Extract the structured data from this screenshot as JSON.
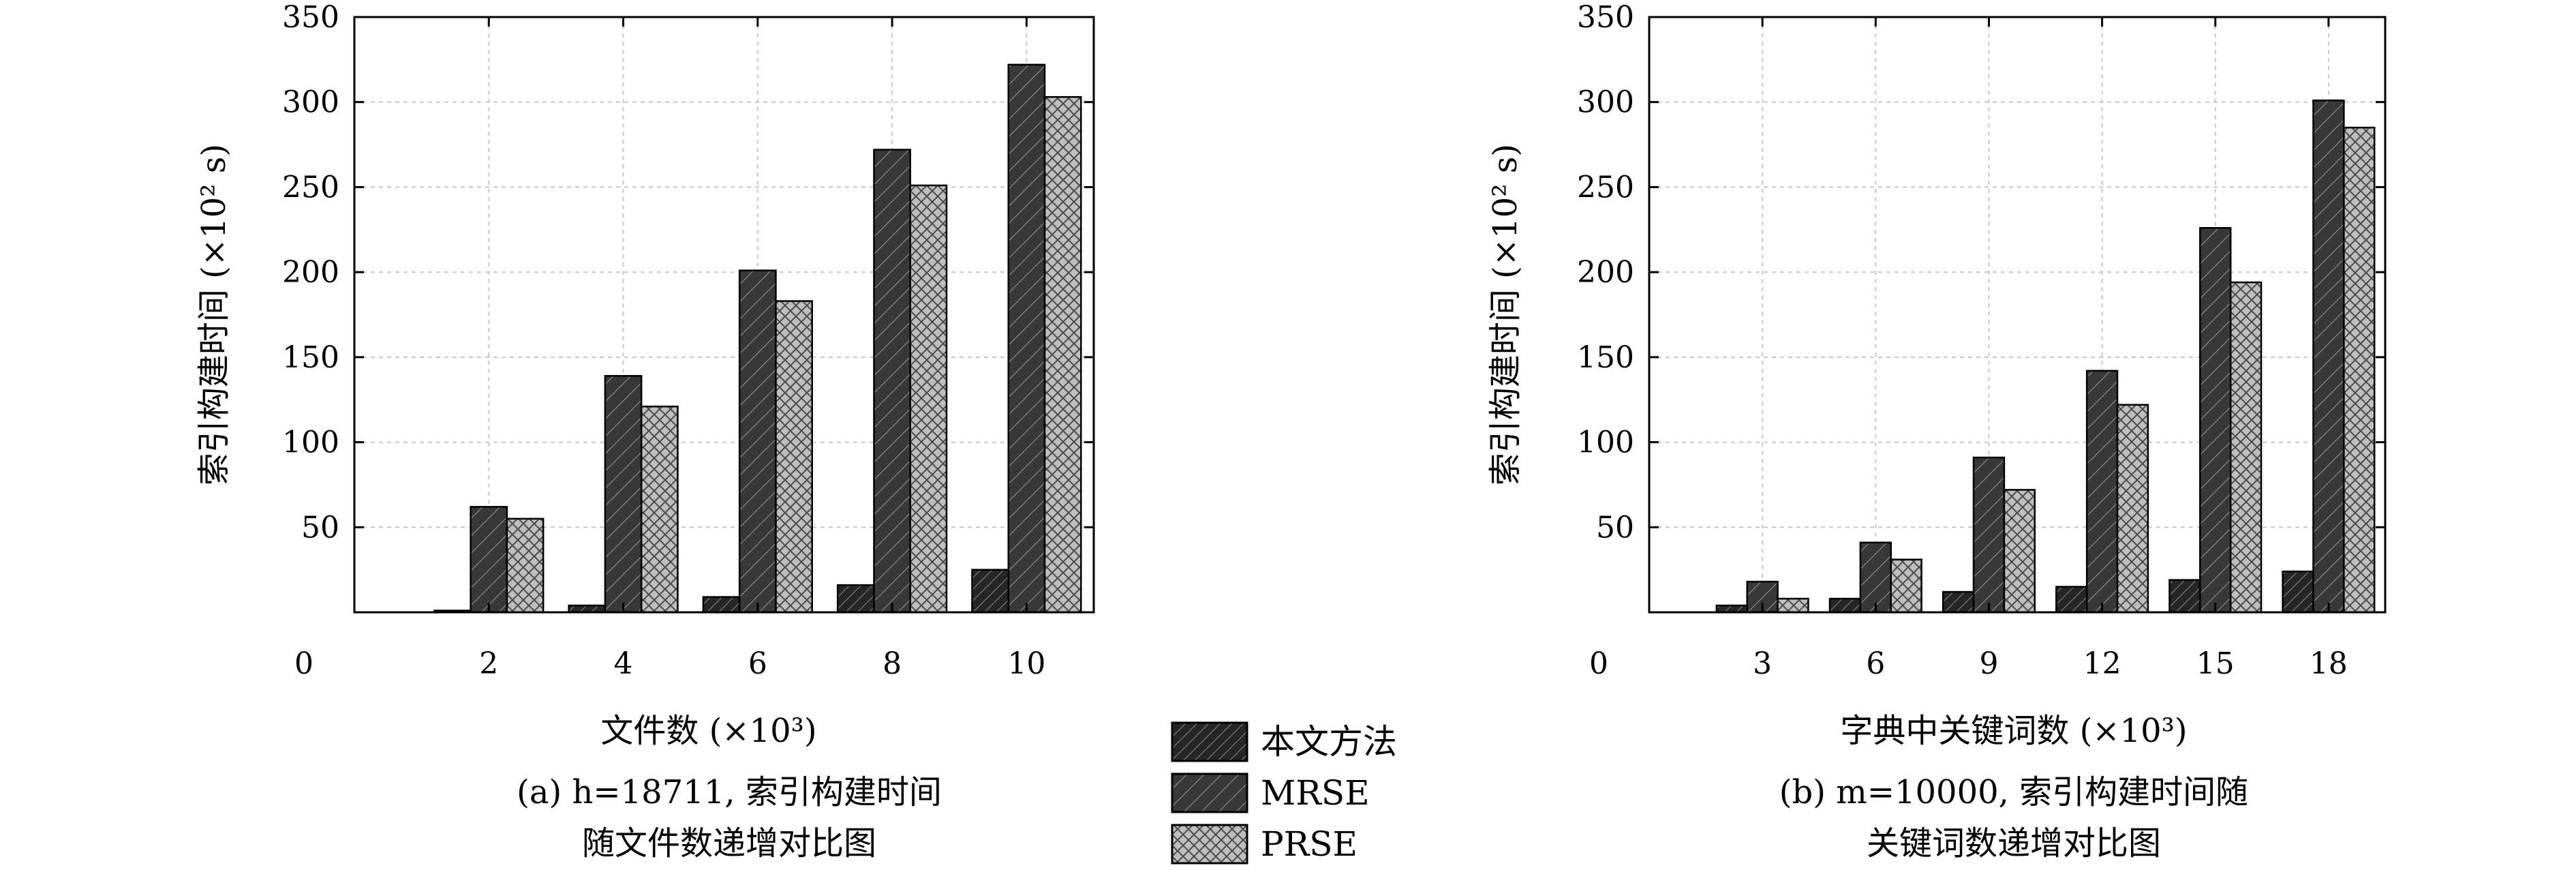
{
  "colors": {
    "series_fill": [
      "#2b2b2b",
      "#3a3a3a",
      "#b5b5b5"
    ],
    "grid": "#c8c8c8",
    "axis": "#000000"
  },
  "legend": {
    "entries": [
      {
        "label": "本文方法",
        "pattern": "hatch-dense"
      },
      {
        "label": "MRSE",
        "pattern": "hatch-sparse"
      },
      {
        "label": "PRSE",
        "pattern": "crosshatch"
      }
    ]
  },
  "chart_data": [
    {
      "type": "bar",
      "ylabel": "索引构建时间 (×10² s)",
      "xlabel": "文件数 (×10³)",
      "caption_line1": "(a) h=18711, 索引构建时间",
      "caption_line2": "随文件数递增对比图",
      "origin_label": "0",
      "ylim": [
        0,
        350
      ],
      "yticks": [
        50,
        100,
        150,
        200,
        250,
        300,
        350
      ],
      "grid": true,
      "categories": [
        "2",
        "4",
        "6",
        "8",
        "10"
      ],
      "series": [
        {
          "name": "本文方法",
          "values": [
            1,
            4,
            9,
            16,
            25
          ]
        },
        {
          "name": "MRSE",
          "values": [
            62,
            139,
            201,
            272,
            322
          ]
        },
        {
          "name": "PRSE",
          "values": [
            55,
            121,
            183,
            251,
            303
          ]
        }
      ]
    },
    {
      "type": "bar",
      "ylabel": "索引构建时间 (×10² s)",
      "xlabel": "字典中关键词数 (×10³)",
      "caption_line1": "(b) m=10000, 索引构建时间随",
      "caption_line2": "关键词数递增对比图",
      "origin_label": "0",
      "ylim": [
        0,
        350
      ],
      "yticks": [
        50,
        100,
        150,
        200,
        250,
        300,
        350
      ],
      "grid": true,
      "categories": [
        "3",
        "6",
        "9",
        "12",
        "15",
        "18"
      ],
      "series": [
        {
          "name": "本文方法",
          "values": [
            4,
            8,
            12,
            15,
            19,
            24
          ]
        },
        {
          "name": "MRSE",
          "values": [
            18,
            41,
            91,
            142,
            226,
            301
          ]
        },
        {
          "name": "PRSE",
          "values": [
            8,
            31,
            72,
            122,
            194,
            285
          ]
        }
      ]
    }
  ]
}
